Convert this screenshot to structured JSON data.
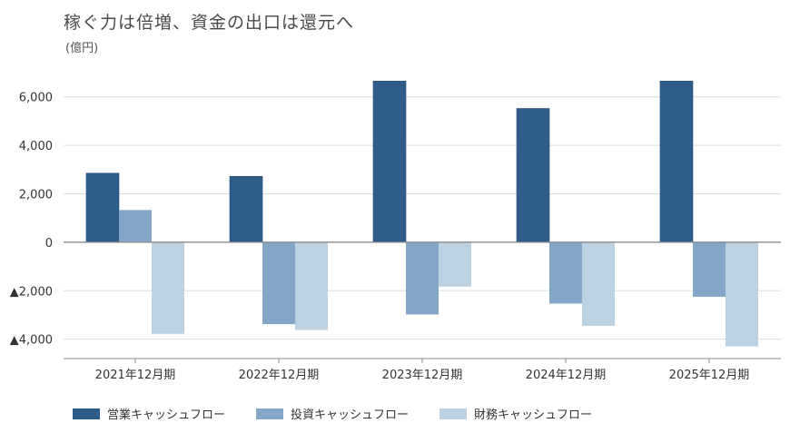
{
  "title": "稼ぐ力は倍増、資金の出口は還元へ",
  "unit": "(億円)",
  "chart_data": {
    "type": "bar",
    "categories": [
      "2021年12月期",
      "2022年12月期",
      "2023年12月期",
      "2024年12月期",
      "2025年12月期"
    ],
    "series": [
      {
        "name": "営業キャッシュフロー",
        "color": "#2e5d8a",
        "values": [
          2850,
          2720,
          6650,
          5520,
          6650
        ]
      },
      {
        "name": "投資キャッシュフロー",
        "color": "#84a7c9",
        "values": [
          1330,
          -3380,
          -2980,
          -2530,
          -2250
        ]
      },
      {
        "name": "財務キャッシュフロー",
        "color": "#bcd2e3",
        "values": [
          -3780,
          -3620,
          -1830,
          -3450,
          -4300
        ]
      }
    ],
    "ylim": [
      -4800,
      7000
    ],
    "yticks": [
      6000,
      4000,
      2000,
      0,
      -2000,
      -4000
    ],
    "ytick_labels": [
      "6,000",
      "4,000",
      "2,000",
      "0",
      "▲2,000",
      "▲4,000"
    ],
    "grid": true,
    "legend": "bottom"
  }
}
